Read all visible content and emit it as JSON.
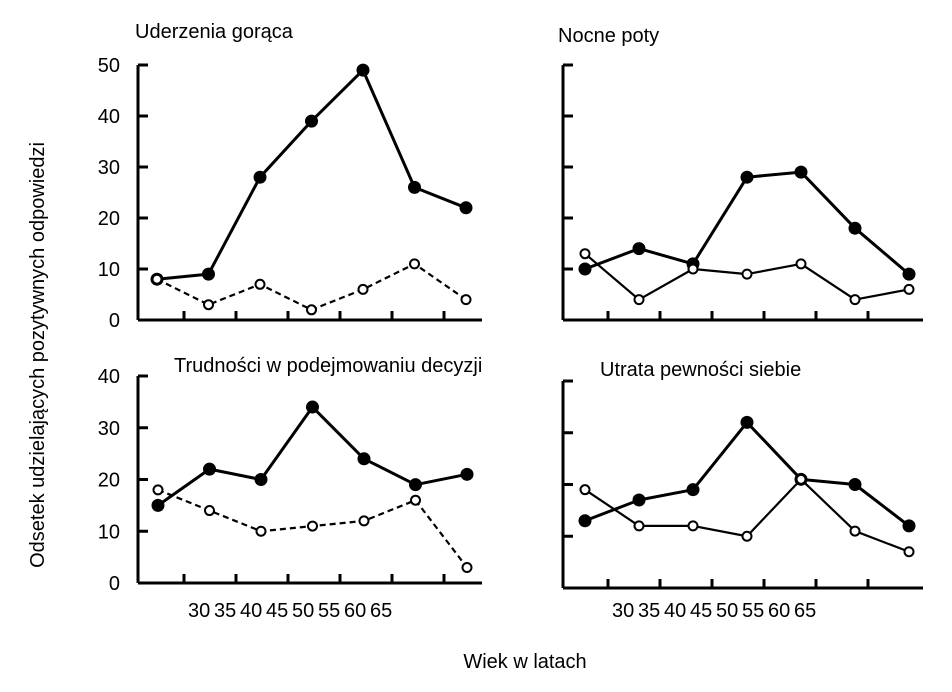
{
  "figure": {
    "ylabel": "Odsetek udzielających pozytywnych odpowiedzi",
    "xlabel": "Wiek w latach",
    "x_tick_labels": [
      "30",
      "35",
      "40",
      "45",
      "50",
      "55",
      "60",
      "65"
    ]
  },
  "chart_data": [
    {
      "type": "line",
      "title": "Uderzenia gorąca",
      "ylim": [
        0,
        50
      ],
      "y_ticks": [
        0,
        10,
        20,
        30,
        40,
        50
      ],
      "grid": false,
      "x_positions": [
        1,
        2,
        3,
        4,
        5,
        6,
        7
      ],
      "series": [
        {
          "style": "solid",
          "marker": "filled-circle",
          "values": [
            8,
            9,
            28,
            39,
            49,
            26,
            22
          ]
        },
        {
          "style": "dashed",
          "marker": "open-circle",
          "values": [
            8,
            3,
            7,
            2,
            6,
            11,
            4
          ]
        }
      ]
    },
    {
      "type": "line",
      "title": "Nocne poty",
      "ylim": [
        0,
        50
      ],
      "y_ticks": [
        0,
        10,
        20,
        30,
        40,
        50
      ],
      "grid": false,
      "x_positions": [
        1,
        2,
        3,
        4,
        5,
        6,
        7
      ],
      "series": [
        {
          "style": "solid",
          "marker": "filled-circle",
          "values": [
            10,
            14,
            11,
            28,
            29,
            18,
            9
          ]
        },
        {
          "style": "solid",
          "marker": "open-circle",
          "values": [
            13,
            4,
            10,
            9,
            11,
            4,
            6
          ]
        }
      ]
    },
    {
      "type": "line",
      "title": "Trudności w podejmowaniu decyzji",
      "ylim": [
        0,
        40
      ],
      "y_ticks": [
        0,
        10,
        20,
        30,
        40
      ],
      "grid": false,
      "x_positions": [
        1,
        2,
        3,
        4,
        5,
        6,
        7
      ],
      "series": [
        {
          "style": "solid",
          "marker": "filled-circle",
          "values": [
            15,
            22,
            20,
            34,
            24,
            19,
            21
          ]
        },
        {
          "style": "dashed",
          "marker": "open-circle",
          "values": [
            18,
            14,
            10,
            11,
            12,
            16,
            3
          ]
        }
      ]
    },
    {
      "type": "line",
      "title": "Utrata pewności siebie",
      "ylim": [
        0,
        40
      ],
      "y_ticks": [
        0,
        10,
        20,
        30,
        40
      ],
      "grid": false,
      "x_positions": [
        1,
        2,
        3,
        4,
        5,
        6,
        7
      ],
      "series": [
        {
          "style": "solid",
          "marker": "filled-circle",
          "values": [
            13,
            17,
            19,
            32,
            21,
            20,
            12
          ]
        },
        {
          "style": "solid",
          "marker": "open-circle",
          "values": [
            19,
            12,
            12,
            10,
            21,
            11,
            7
          ]
        }
      ]
    }
  ]
}
